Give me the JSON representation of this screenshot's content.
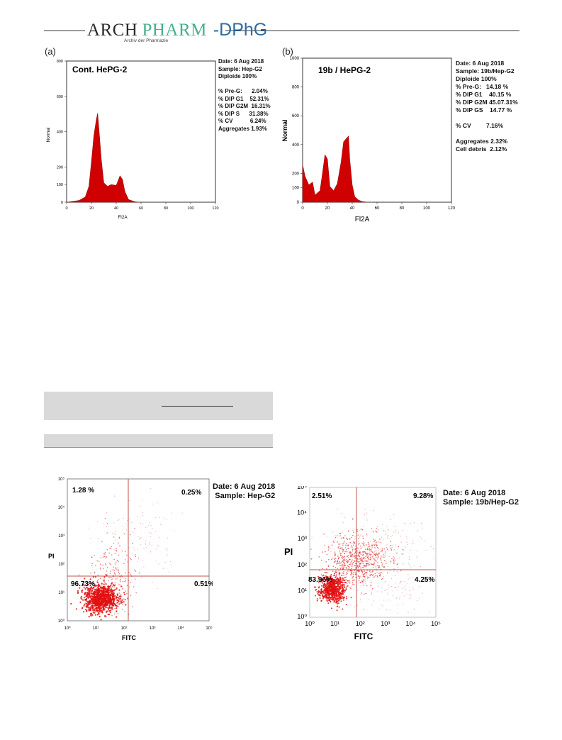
{
  "header": {
    "arch": "ARCH",
    "pharm": "PHARM",
    "dphg": "DPhG",
    "subtitle": "Archiv der Pharmazie"
  },
  "panel_a": {
    "letter": "(a)",
    "title": "Cont. HePG-2",
    "readout": [
      "Date: 6 Aug 2018",
      "Sample: Hep-G2",
      "Diploide 100%",
      "",
      "% Pre-G:      2.04%",
      "% DIP G1    52.31%",
      "% DIP G2M  16.31%",
      "% DIP S      31.38%",
      "% CV           6.24%",
      "Aggregates 1.93%"
    ]
  },
  "panel_b": {
    "letter": "(b)",
    "title": "19b / HePG-2",
    "readout": [
      "Date: 6 Aug 2018",
      "Sample: 19b/Hep-G2",
      "Diploide 100%",
      "% Pre-G:   14.18 %",
      "% DIP G1    40.15 %",
      "% DIP G2M 45.07.31%",
      "% DIP GS    14.77 %",
      "",
      "% CV         7.16%",
      "",
      "Aggregates 2.32%",
      "Cell debris  2.12%"
    ]
  },
  "scatter_a": {
    "date": "Date: 6 Aug 2018",
    "sample": "Sample: Hep-G2",
    "q_ul": "1.28 %",
    "q_ur": "0.25%",
    "q_ll": "96.73%",
    "q_lr": "0.51%"
  },
  "scatter_b": {
    "date": "Date: 6 Aug 2018",
    "sample": "Sample: 19b/Hep-G2",
    "q_ul": "2.51%",
    "q_ur": "9.28%",
    "q_ll": "83.96%",
    "q_lr": "4.25%"
  },
  "chart_data": [
    {
      "type": "area",
      "xlabel": "Fl2A",
      "ylabel": "Normal",
      "xlim": [
        0,
        120
      ],
      "ylim": [
        0,
        800
      ],
      "x_ticks": [
        0,
        20,
        40,
        60,
        80,
        100,
        120
      ],
      "y_ticks": [
        0,
        100,
        200,
        400,
        600,
        800
      ],
      "x": [
        0,
        5,
        10,
        15,
        18,
        20,
        22,
        24,
        25,
        26,
        28,
        30,
        33,
        36,
        40,
        43,
        45,
        47,
        50,
        55,
        58
      ],
      "y": [
        0,
        5,
        10,
        30,
        90,
        230,
        380,
        470,
        505,
        420,
        240,
        110,
        90,
        100,
        95,
        150,
        130,
        60,
        15,
        3,
        0
      ]
    },
    {
      "type": "area",
      "xlabel": "Fl2A",
      "ylabel": "Normal",
      "xlim": [
        0,
        120
      ],
      "ylim": [
        0,
        1000
      ],
      "x_ticks": [
        0,
        20,
        40,
        60,
        80,
        100,
        120
      ],
      "y_ticks": [
        0,
        100,
        200,
        400,
        600,
        800,
        1000
      ],
      "x": [
        0,
        2,
        5,
        8,
        10,
        14,
        16,
        18,
        20,
        22,
        25,
        28,
        31,
        33,
        35,
        36,
        37,
        38,
        40,
        42,
        45,
        48,
        52
      ],
      "y": [
        260,
        180,
        120,
        140,
        50,
        80,
        200,
        330,
        300,
        110,
        80,
        130,
        280,
        420,
        440,
        450,
        460,
        300,
        120,
        40,
        15,
        5,
        0
      ]
    },
    {
      "type": "scatter",
      "xlabel": "FITC",
      "ylabel": "PI",
      "log_scale": true,
      "x_ticks": [
        "10⁰",
        "10¹",
        "10²",
        "10³",
        "10⁴",
        "10⁵"
      ],
      "y_ticks": [
        "10⁰",
        "10¹",
        "10²",
        "10³",
        "10⁴",
        "10⁵"
      ],
      "quadrants": {
        "upper_left": "1.28 %",
        "upper_right": "0.25%",
        "lower_left": "96.73%",
        "lower_right": "0.51%"
      }
    },
    {
      "type": "scatter",
      "xlabel": "FITC",
      "ylabel": "PI",
      "log_scale": true,
      "x_ticks": [
        "10⁰",
        "10¹",
        "10²",
        "10³",
        "10⁴",
        "10⁵"
      ],
      "y_ticks": [
        "10⁰",
        "10¹",
        "10²",
        "10³",
        "10⁴",
        "10⁵"
      ],
      "quadrants": {
        "upper_left": "2.51%",
        "upper_right": "9.28%",
        "lower_left": "83.96%",
        "lower_right": "4.25%"
      }
    }
  ],
  "colors": {
    "fill": "#d10000",
    "dot": "#e01010",
    "gate": "#c0504d",
    "table_band": "#d9d9d9"
  }
}
